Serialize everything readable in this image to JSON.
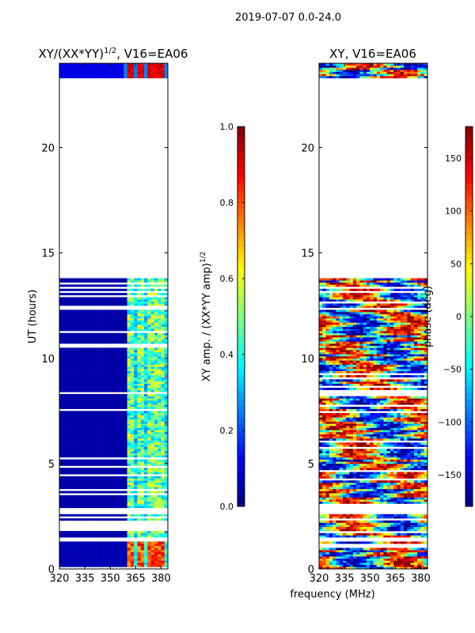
{
  "chart_data": [
    {
      "type": "heatmap",
      "suptitle": "2019-07-07 0.0-24.0",
      "title": "XY/(XX*YY)^1/2, V16=EA06",
      "title_main": "XY/(XX*YY)",
      "title_sup": "1/2",
      "title_rest": ", V16=EA06",
      "ylabel": "UT (hours)",
      "xlabel": "",
      "xlim": [
        320,
        384
      ],
      "ylim": [
        0,
        24
      ],
      "xticks": [
        "320",
        "335",
        "350",
        "365",
        "380"
      ],
      "xtick_values": [
        320,
        335,
        350,
        365,
        380
      ],
      "yticks": [
        "0",
        "5",
        "10",
        "15",
        "20"
      ],
      "ytick_values": [
        0,
        5,
        10,
        15,
        20
      ],
      "data_time_ranges_hours": [
        [
          0,
          1.3
        ],
        [
          1.5,
          2.6
        ],
        [
          2.9,
          13.9
        ],
        [
          23.3,
          24
        ]
      ],
      "high_value_freq_ranges_mhz": [
        [
          361,
          364
        ],
        [
          367,
          370
        ],
        [
          373,
          377
        ],
        [
          378,
          381
        ]
      ],
      "colorbar": {
        "label": "XY amp. / (XX*YY amp)^1/2",
        "label_main": "XY amp. / (XX*YY amp)",
        "label_sup": "1/2",
        "range": [
          0,
          1
        ],
        "ticks": [
          "0.0",
          "0.2",
          "0.4",
          "0.6",
          "0.8",
          "1.0"
        ],
        "tick_values": [
          0,
          0.2,
          0.4,
          0.6,
          0.8,
          1.0
        ]
      }
    },
    {
      "type": "heatmap",
      "title": "XY, V16=EA06",
      "xlabel": "frequency (MHz)",
      "xlim": [
        320,
        384
      ],
      "ylim": [
        0,
        24
      ],
      "xticks": [
        "320",
        "335",
        "350",
        "365",
        "380"
      ],
      "xtick_values": [
        320,
        335,
        350,
        365,
        380
      ],
      "yticks": [
        "0",
        "5",
        "10",
        "15",
        "20"
      ],
      "ytick_values": [
        0,
        5,
        10,
        15,
        20
      ],
      "data_time_ranges_hours": [
        [
          0,
          1.3
        ],
        [
          1.5,
          2.6
        ],
        [
          2.9,
          13.9
        ],
        [
          23.3,
          24
        ]
      ],
      "colorbar": {
        "label": "phase (deg)",
        "range": [
          -180,
          180
        ],
        "ticks": [
          "-150",
          "-100",
          "-50",
          "0",
          "50",
          "100",
          "150"
        ],
        "tick_values": [
          -150,
          -100,
          -50,
          0,
          50,
          100,
          150
        ]
      }
    }
  ]
}
